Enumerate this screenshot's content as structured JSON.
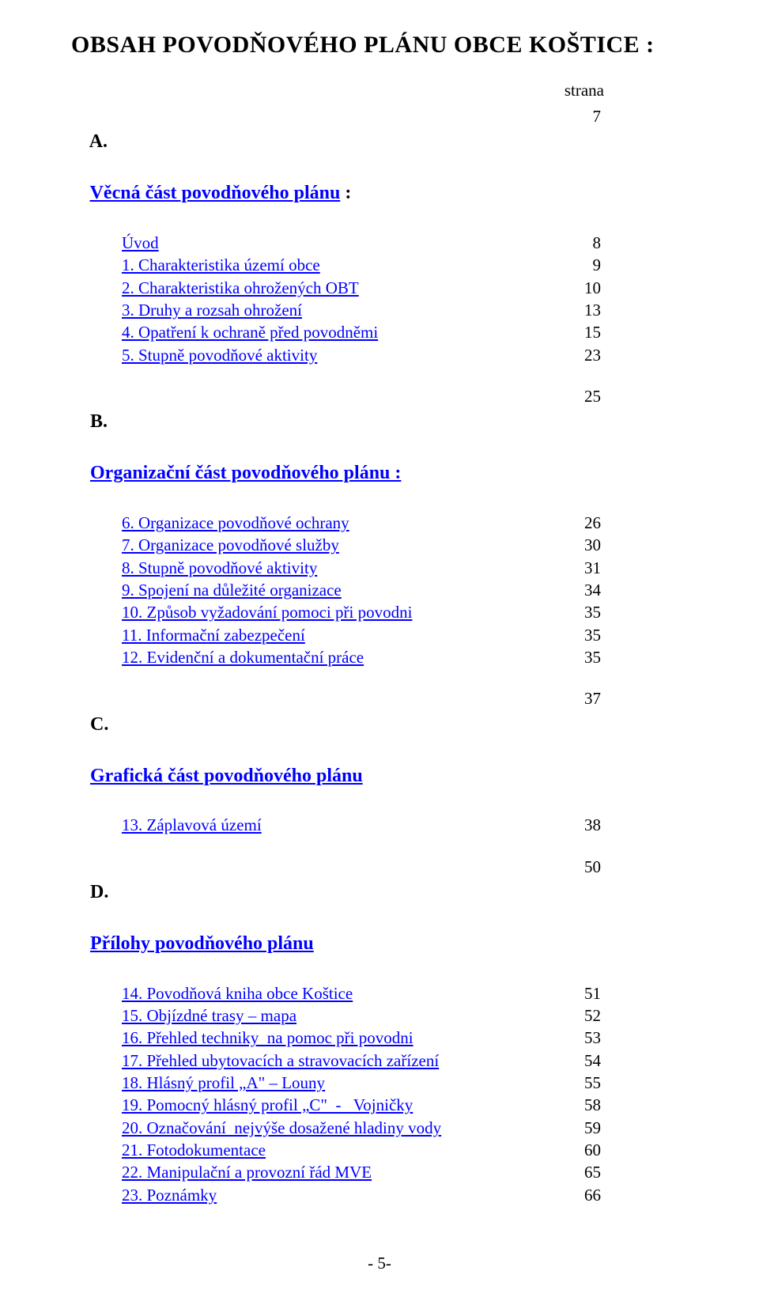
{
  "title": "OBSAH POVODŇOVÉHO PLÁNU OBCE  KOŠTICE :",
  "strana_label": "strana",
  "sections": {
    "A": {
      "letter": "A.",
      "heading": "Věcná část povodňového plánu",
      "heading_colon": " :",
      "page": "7",
      "items": [
        {
          "label": "Úvod",
          "page": "8",
          "link": true
        },
        {
          "label": "1. Charakteristika území obce",
          "page": "9",
          "link": true
        },
        {
          "label": "2. Charakteristika ohrožených OBT",
          "page": "10",
          "link": true
        },
        {
          "label": "3. Druhy a rozsah ohrožení",
          "page": "13",
          "link": true
        },
        {
          "label": "4. Opatření k ochraně před povodněmi",
          "page": "15",
          "link": true
        },
        {
          "label": "5. Stupně povodňové aktivity",
          "page": "23",
          "link": true
        }
      ]
    },
    "B": {
      "letter": "B.",
      "heading": "Organizační část povodňového plánu :",
      "page": "25",
      "items": [
        {
          "label": "6. Organizace povodňové ochrany",
          "page": "26",
          "link": true
        },
        {
          "label": "7. Organizace povodňové služby",
          "page": "30",
          "link": true
        },
        {
          "label": "8. Stupně povodňové aktivity",
          "page": "31",
          "link": true
        },
        {
          "label": "9. Spojení na důležité organizace",
          "page": "34",
          "link": true
        },
        {
          "label": "10. Způsob vyžadování pomoci při povodni",
          "page": "35",
          "link": true
        },
        {
          "label": "11. Informační zabezpečení",
          "page": "35",
          "link": true
        },
        {
          "label": "12. Evidenční a dokumentační práce",
          "page": "35",
          "link": true
        }
      ]
    },
    "C": {
      "letter": "C.",
      "heading": "Grafická část povodňového plánu",
      "page": "37",
      "items": [
        {
          "label": "13. Záplavová území",
          "page": "38",
          "link": true
        }
      ]
    },
    "D": {
      "letter": "D.",
      "heading": "Přílohy povodňového plánu",
      "page": "50",
      "items": [
        {
          "label": "14. Povodňová kniha obce Koštice",
          "page": "51",
          "link": true
        },
        {
          "label": "15. Objízdné trasy – mapa",
          "page": "52",
          "link": true
        },
        {
          "label": "16. Přehled techniky  na pomoc při povodni",
          "page": "53",
          "link": true
        },
        {
          "label": "17. Přehled ubytovacích a stravovacích zařízení",
          "page": "54",
          "link": true
        },
        {
          "label": "18. Hlásný profil „A\" – Louny",
          "page": "55",
          "link": true
        },
        {
          "label": "19. Pomocný hlásný profil „C\"  -   Vojničky",
          "page": "58",
          "link": true
        },
        {
          "label": "20. Označování  nejvýše dosažené hladiny vody",
          "page": "59",
          "link": true
        },
        {
          "label": "21. Fotodokumentace",
          "page": "60",
          "link": true
        },
        {
          "label": "22. Manipulační a provozní řád MVE",
          "page": "65",
          "link": true
        },
        {
          "label": "23. Poznámky",
          "page": "66",
          "link": true
        }
      ]
    }
  },
  "footer": "- 5-",
  "colors": {
    "text": "#000000",
    "link": "#0000ff",
    "background": "#ffffff"
  }
}
